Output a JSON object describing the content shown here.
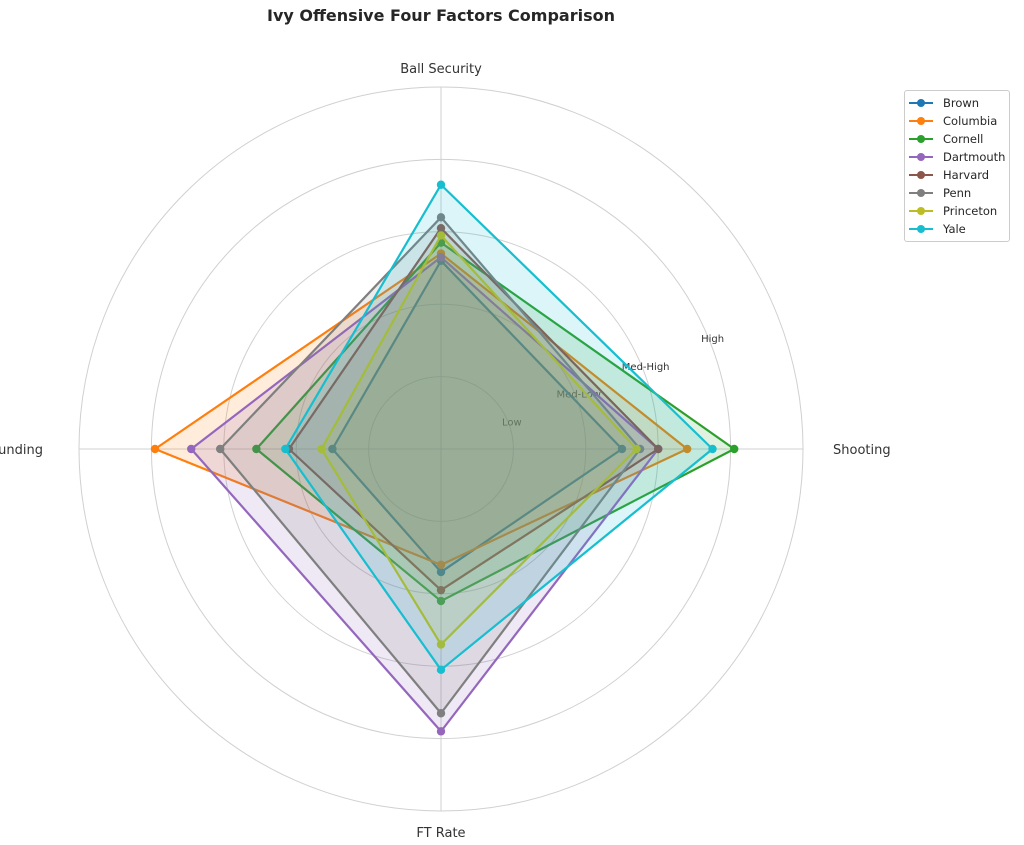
{
  "chart_data": {
    "type": "radar",
    "title": "Ivy Offensive Four Factors Comparison",
    "axes": [
      "Shooting",
      "Ball Security",
      "Off Rebounding",
      "FT Rate"
    ],
    "ring_labels": [
      "Low",
      "Med-Low",
      "Med-High",
      "High"
    ],
    "range": [
      0,
      5
    ],
    "grid": true,
    "legend_position": "top-right",
    "series": [
      {
        "name": "Brown",
        "color": "#1f77b4",
        "values": [
          2.5,
          2.6,
          1.5,
          1.7
        ]
      },
      {
        "name": "Columbia",
        "color": "#ff7f0e",
        "values": [
          3.4,
          2.7,
          3.95,
          1.6
        ]
      },
      {
        "name": "Cornell",
        "color": "#2ca02c",
        "values": [
          4.05,
          2.85,
          2.55,
          2.1
        ]
      },
      {
        "name": "Dartmouth",
        "color": "#9467bd",
        "values": [
          3.0,
          2.65,
          3.45,
          3.9
        ]
      },
      {
        "name": "Harvard",
        "color": "#8c564b",
        "values": [
          3.0,
          3.05,
          2.1,
          1.95
        ]
      },
      {
        "name": "Penn",
        "color": "#7f7f7f",
        "values": [
          2.75,
          3.2,
          3.05,
          3.65
        ]
      },
      {
        "name": "Princeton",
        "color": "#bcbd22",
        "values": [
          2.7,
          2.95,
          1.65,
          2.7
        ]
      },
      {
        "name": "Yale",
        "color": "#17becf",
        "values": [
          3.75,
          3.65,
          2.15,
          3.05
        ]
      }
    ]
  }
}
